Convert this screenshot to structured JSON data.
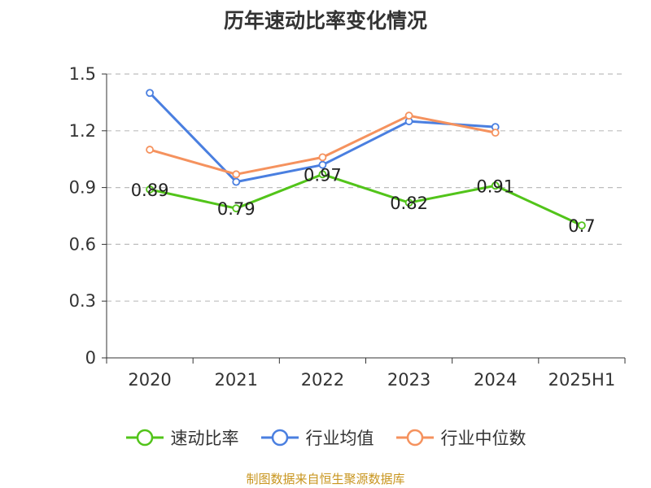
{
  "chart_data": {
    "type": "line",
    "title": "历年速动比率变化情况",
    "categories": [
      "2020",
      "2021",
      "2022",
      "2023",
      "2024",
      "2025H1"
    ],
    "ylim": [
      0,
      1.5
    ],
    "yticks": [
      "0",
      "0.3",
      "0.6",
      "0.9",
      "1.2",
      "1.5"
    ],
    "grid": true,
    "legend_position": "bottom",
    "series": [
      {
        "name": "速动比率",
        "color": "#52c41a",
        "values": [
          0.89,
          0.79,
          0.97,
          0.82,
          0.91,
          0.7
        ],
        "labels": [
          "0.89",
          "0.79",
          "0.97",
          "0.82",
          "0.91",
          "0.7"
        ]
      },
      {
        "name": "行业均值",
        "color": "#4a7fe0",
        "values": [
          1.4,
          0.93,
          1.02,
          1.25,
          1.22,
          null
        ]
      },
      {
        "name": "行业中位数",
        "color": "#f5925e",
        "values": [
          1.1,
          0.97,
          1.06,
          1.28,
          1.19,
          null
        ]
      }
    ]
  },
  "footer": {
    "text": "制图数据来自恒生聚源数据库",
    "color": "#c8951e"
  }
}
